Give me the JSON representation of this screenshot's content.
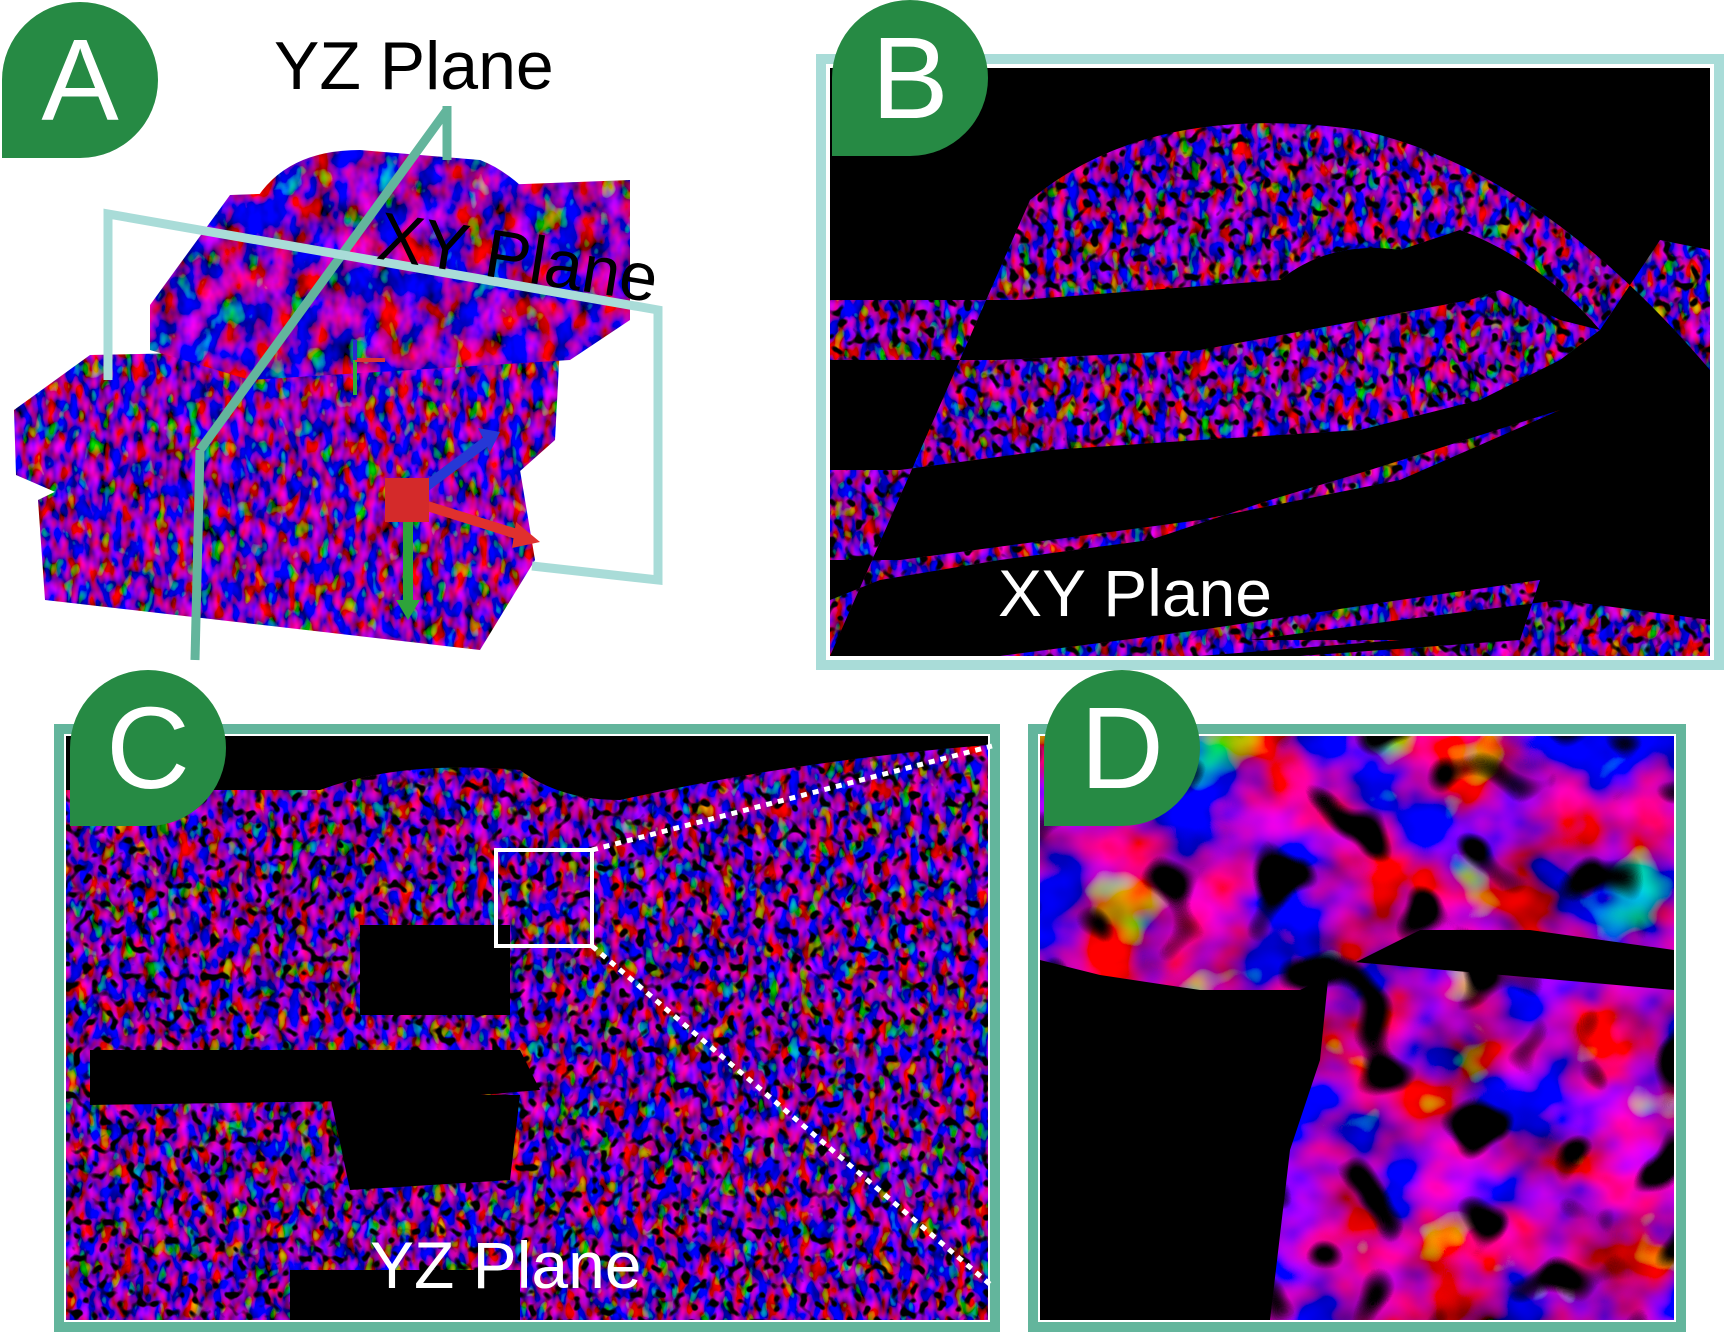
{
  "panels": {
    "a": {
      "badge": "A",
      "yz_label": "YZ Plane",
      "xy_label": "XY Plane"
    },
    "b": {
      "badge": "B",
      "label": "XY Plane"
    },
    "c": {
      "badge": "C",
      "label": "YZ Plane"
    },
    "d": {
      "badge": "D"
    }
  },
  "colors": {
    "badge": "#268a44",
    "xy_frame": "#a9dcd8",
    "yz_frame": "#63b59c",
    "texture": [
      "#e8382f",
      "#2b2fd9",
      "#3bd14a",
      "#8a3be0"
    ]
  }
}
